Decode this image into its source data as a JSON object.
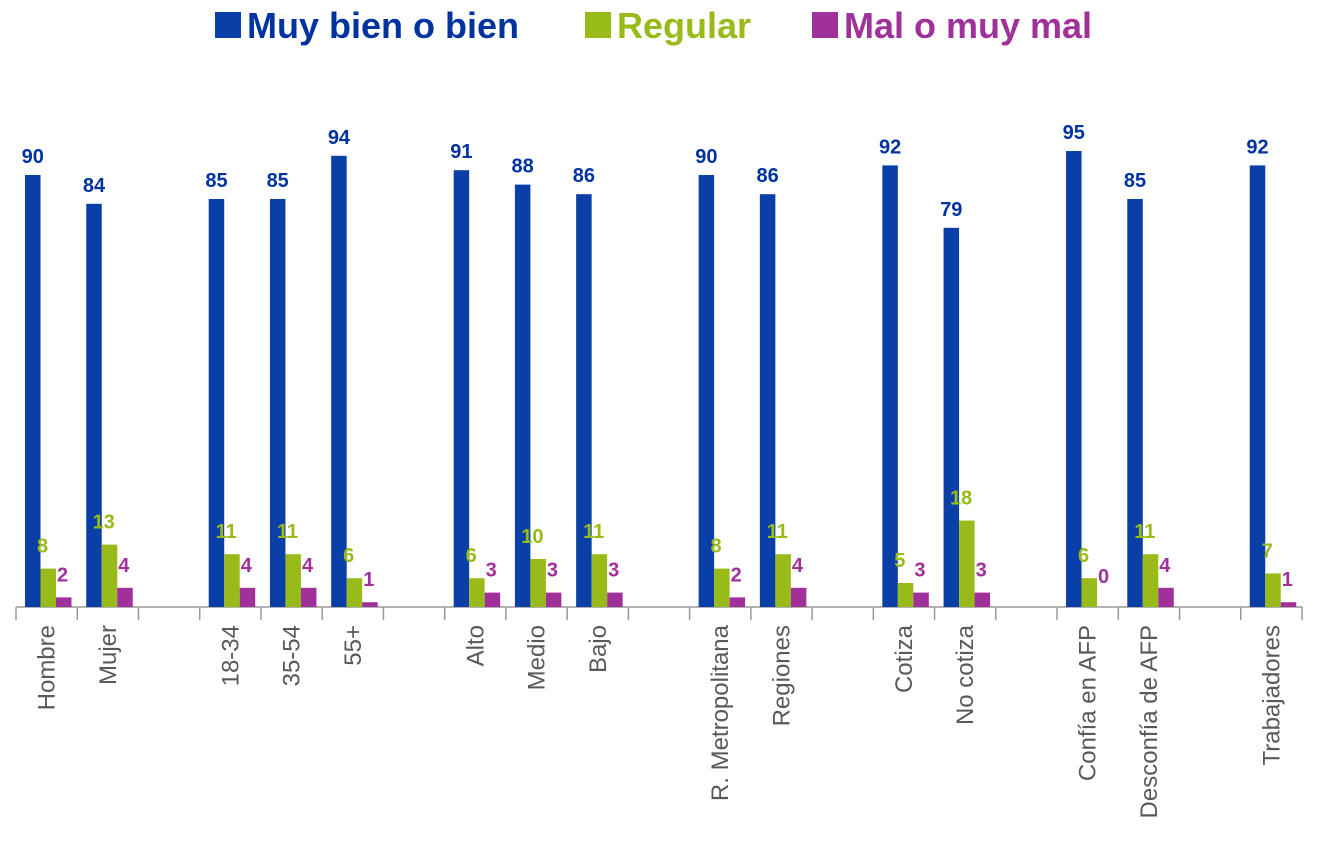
{
  "chart_data": {
    "type": "bar",
    "categories": [
      "Hombre",
      "Mujer",
      null,
      "18-34",
      "35-54",
      "55+",
      null,
      "Alto",
      "Medio",
      "Bajo",
      null,
      "R. Metropolitana",
      "Regiones",
      null,
      "Cotiza",
      "No cotiza",
      null,
      "Confía en AFP",
      "Desconfía de AFP",
      null,
      "Trabajadores"
    ],
    "series": [
      {
        "name": "Muy bien o bien",
        "color": "#0a3fa8",
        "values": [
          90,
          84,
          null,
          85,
          85,
          94,
          null,
          91,
          88,
          86,
          null,
          90,
          86,
          null,
          92,
          79,
          null,
          95,
          85,
          null,
          92
        ]
      },
      {
        "name": "Regular",
        "color": "#99bb1a",
        "values": [
          8,
          13,
          null,
          11,
          11,
          6,
          null,
          6,
          10,
          11,
          null,
          8,
          11,
          null,
          5,
          18,
          null,
          6,
          11,
          null,
          7
        ]
      },
      {
        "name": "Mal o muy mal",
        "color": "#a0309a",
        "values": [
          2,
          4,
          null,
          4,
          4,
          1,
          null,
          3,
          3,
          3,
          null,
          2,
          4,
          null,
          3,
          3,
          null,
          0,
          4,
          null,
          1
        ]
      }
    ]
  }
}
